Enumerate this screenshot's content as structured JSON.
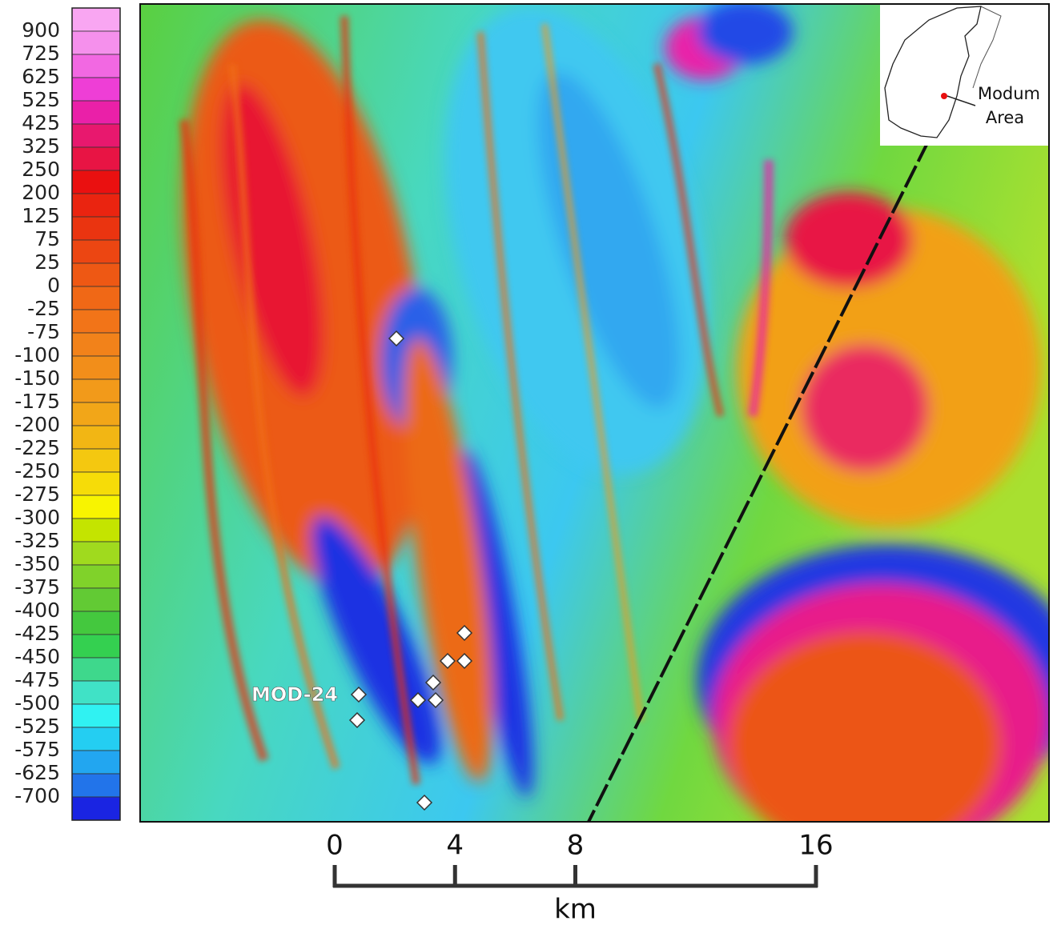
{
  "colorbar": {
    "ticks": [
      900,
      725,
      625,
      525,
      425,
      325,
      250,
      200,
      125,
      75,
      25,
      0,
      -25,
      -75,
      -100,
      -150,
      -175,
      -200,
      -225,
      -250,
      -275,
      -300,
      -325,
      -350,
      -375,
      -400,
      -425,
      -450,
      -475,
      -500,
      -525,
      -575,
      -625,
      -700
    ],
    "colors": [
      "#f9a6f2",
      "#f590ec",
      "#f268e2",
      "#ee3ed6",
      "#ea20a8",
      "#e8186e",
      "#e81444",
      "#ea1010",
      "#ea2410",
      "#ea3410",
      "#ec4612",
      "#ee5814",
      "#f06816",
      "#f27418",
      "#f2821a",
      "#f28e1a",
      "#f29a1a",
      "#f2a618",
      "#f2b614",
      "#f4c810",
      "#f6dc08",
      "#f8f400",
      "#c4e400",
      "#a0da1e",
      "#80d22a",
      "#62ca34",
      "#44c83e",
      "#34d050",
      "#3ed88c",
      "#40e2c6",
      "#30f2f2",
      "#24cef2",
      "#22a6f0",
      "#2274ea",
      "#1a24e2"
    ]
  },
  "scale_bar": {
    "ticks": [
      0,
      4,
      8,
      16
    ],
    "unit": "km"
  },
  "labels": {
    "sample": "MOD-24",
    "inset": [
      "Modum",
      "Area"
    ]
  }
}
